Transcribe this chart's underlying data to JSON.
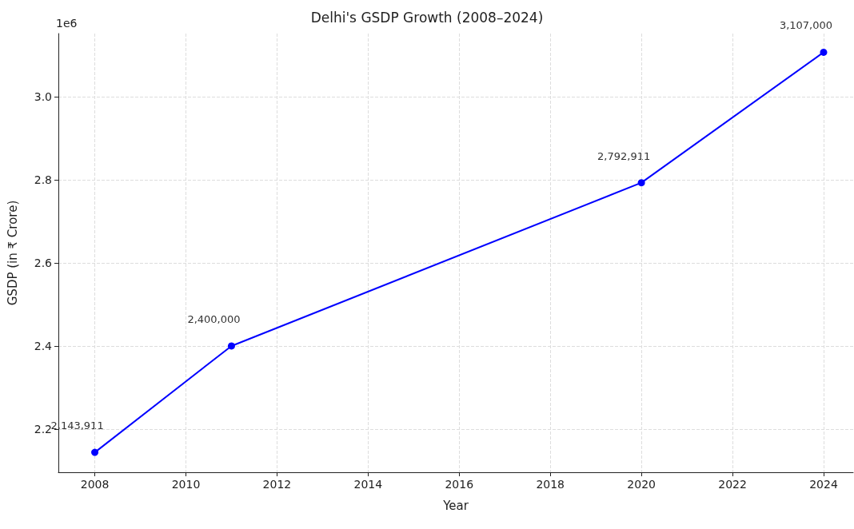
{
  "chart_data": {
    "type": "line",
    "title": "Delhi's GSDP Growth (2008–2024)",
    "xlabel": "Year",
    "ylabel": "GSDP (in ₹ Crore)",
    "annotations": [
      "1e6",
      {
        "text": "2,143,911",
        "x": 2008,
        "y": 2.143911
      },
      {
        "text": "2,400,000",
        "x": 2011,
        "y": 2.4
      },
      {
        "text": "2,792,911",
        "x": 2020,
        "y": 2.792911
      },
      {
        "text": "3,107,000",
        "x": 2024,
        "y": 3.107
      }
    ],
    "x": [
      2008,
      2011,
      2020,
      2024
    ],
    "series": [
      {
        "color": "#0000ff",
        "values": [
          2.143911,
          2.4,
          2.792911,
          3.107
        ]
      }
    ],
    "xlim": [
      2007.2,
      2024.65
    ],
    "xticks": [
      2008,
      2010,
      2012,
      2014,
      2016,
      2018,
      2020,
      2022,
      2024
    ],
    "ylim": [
      2.096,
      3.152
    ],
    "yticks": [
      2.2,
      2.4,
      2.6,
      2.8,
      {
        "value": 3.0,
        "label": "3.0"
      }
    ],
    "grid": true,
    "marker": "circle",
    "line_style": "solid"
  }
}
